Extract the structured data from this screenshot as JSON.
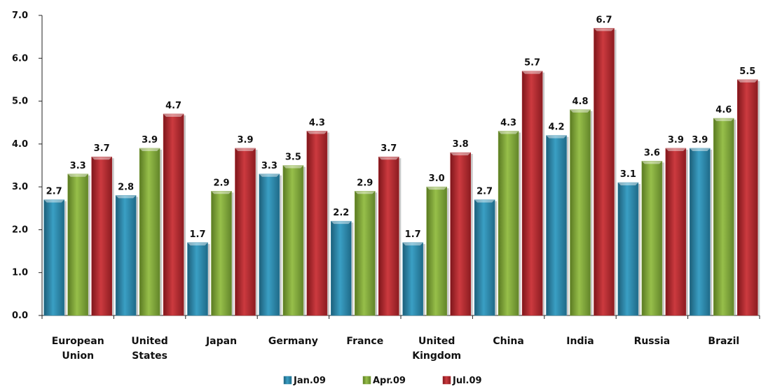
{
  "chart_data": {
    "type": "bar",
    "categories": [
      [
        "European",
        "Union"
      ],
      [
        "United",
        "States"
      ],
      [
        "Japan"
      ],
      [
        "Germany"
      ],
      [
        "France"
      ],
      [
        "United",
        "Kingdom"
      ],
      [
        "China"
      ],
      [
        "India"
      ],
      [
        "Russia"
      ],
      [
        "Brazil"
      ]
    ],
    "series": [
      {
        "name": "Jan.09",
        "color": "#2E86A8",
        "values": [
          2.7,
          2.8,
          1.7,
          3.3,
          2.2,
          1.7,
          2.7,
          4.2,
          3.1,
          3.9
        ]
      },
      {
        "name": "Apr.09",
        "color": "#7FA33A",
        "values": [
          3.3,
          3.9,
          2.9,
          3.5,
          2.9,
          3.0,
          4.3,
          4.8,
          3.6,
          4.6
        ]
      },
      {
        "name": "Jul.09",
        "color": "#B0262B",
        "values": [
          3.7,
          4.7,
          3.9,
          4.3,
          3.7,
          3.8,
          5.7,
          6.7,
          3.9,
          5.5
        ]
      }
    ],
    "y_ticks": [
      "0.0",
      "1.0",
      "2.0",
      "3.0",
      "4.0",
      "5.0",
      "6.0",
      "7.0"
    ],
    "ylim": [
      0,
      7
    ],
    "grid": false,
    "data_labels": true,
    "legend_position": "bottom-center"
  }
}
